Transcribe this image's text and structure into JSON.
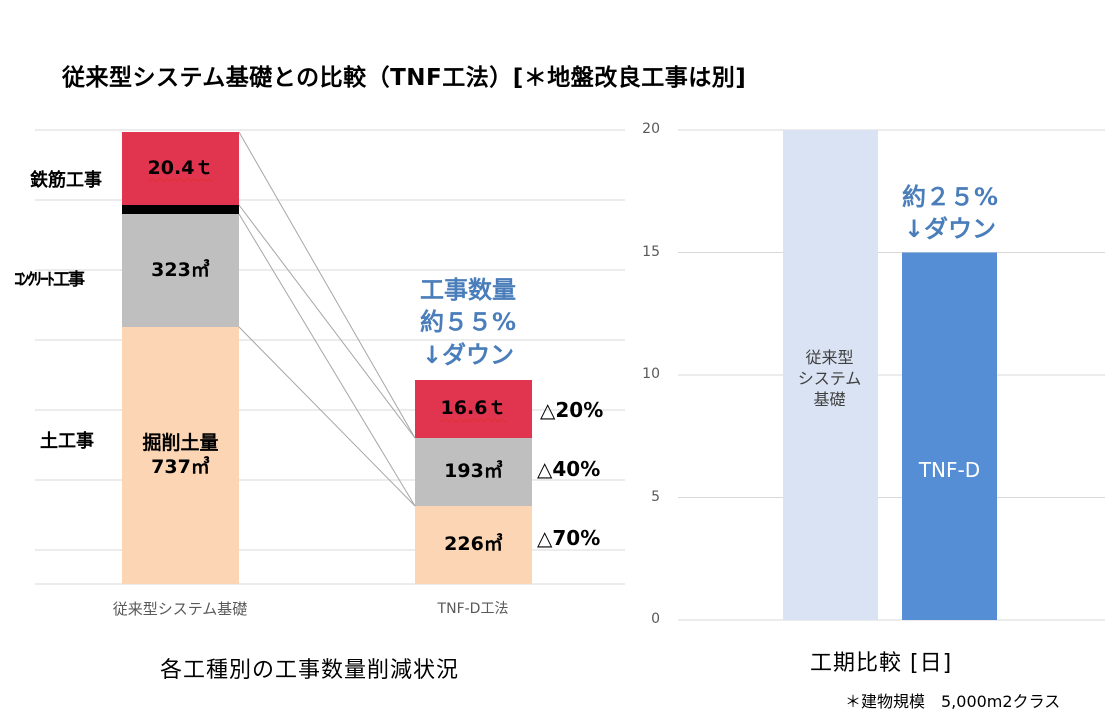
{
  "title": "従来型システム基礎との比較（TNF工法）[＊地盤改良工事は別]",
  "left_chart": {
    "row_labels": {
      "rebar": "鉄筋工事",
      "concrete": "ｺﾝｸﾘｰﾄ工事",
      "earthwork": "土工事"
    },
    "conventional": {
      "rebar_value": "20.4ｔ",
      "concrete_value": "323㎥",
      "earth_label": "掘削土量",
      "earth_value": "737㎥"
    },
    "tnf": {
      "rebar_value": "16.6ｔ",
      "concrete_value": "193㎥",
      "earth_value": "226㎥"
    },
    "reductions": {
      "rebar": "△20%",
      "concrete": "△40%",
      "earth": "△70%"
    },
    "callout_lines": [
      "工事数量",
      "約５５%",
      "↓ダウン"
    ],
    "x_categories": [
      "従来型システム基礎",
      "TNF-D工法"
    ],
    "subtitle": "各工種別の工事数量削減状況",
    "colors": {
      "rebar": "#e0344f",
      "separator": "#000000",
      "concrete": "#bfbfbf",
      "earth": "#fcd5b4",
      "connector": "#a6a6a6"
    }
  },
  "right_chart": {
    "callout_lines": [
      "約２５%",
      "↓ダウン"
    ],
    "subtitle": "工期比較 [日]",
    "note": "＊建物規模　5,000m2クラス",
    "bar_labels": {
      "conventional": [
        "従来型",
        "システム",
        "基礎"
      ],
      "tnf": "TNF-D"
    },
    "colors": {
      "conventional": "#dae3f3",
      "tnf": "#558ed5"
    }
  },
  "chart_data": [
    {
      "type": "bar",
      "stacked": true,
      "categories": [
        "従来型システム基礎",
        "TNF-D工法"
      ],
      "series": [
        {
          "name": "土工事",
          "values": [
            737,
            226
          ]
        },
        {
          "name": "ｺﾝｸﾘｰﾄ工事",
          "values": [
            323,
            193
          ]
        },
        {
          "name": "鉄筋工事",
          "values": [
            20.4,
            16.6
          ]
        }
      ],
      "grid": true
    },
    {
      "type": "bar",
      "categories": [
        "従来型システム基礎",
        "TNF-D"
      ],
      "values": [
        20,
        15
      ],
      "yticks": [
        0,
        5,
        10,
        15,
        20
      ],
      "ylim": [
        0,
        20
      ],
      "grid": true
    }
  ]
}
